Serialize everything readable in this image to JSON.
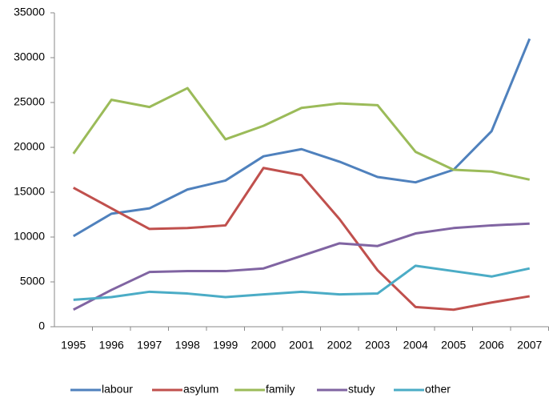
{
  "chart_data": {
    "type": "line",
    "categories": [
      "1995",
      "1996",
      "1997",
      "1998",
      "1999",
      "2000",
      "2001",
      "2002",
      "2003",
      "2004",
      "2005",
      "2006",
      "2007"
    ],
    "series": [
      {
        "name": "labour",
        "color": "#4f81bd",
        "values": [
          10100,
          12600,
          13200,
          15300,
          16300,
          19000,
          19800,
          18400,
          16700,
          16100,
          17500,
          21800,
          32100
        ]
      },
      {
        "name": "asylum",
        "color": "#c0504d",
        "values": [
          15500,
          13200,
          10900,
          11000,
          11300,
          17700,
          16900,
          12000,
          6300,
          2200,
          1900,
          2700,
          3400
        ]
      },
      {
        "name": "family",
        "color": "#9bbb59",
        "values": [
          19300,
          25300,
          24500,
          26600,
          20900,
          22400,
          24400,
          24900,
          24700,
          19500,
          17500,
          17300,
          16400
        ]
      },
      {
        "name": "study",
        "color": "#8064a2",
        "values": [
          1900,
          4100,
          6100,
          6200,
          6200,
          6500,
          7900,
          9300,
          9000,
          10400,
          11000,
          11300,
          11500
        ]
      },
      {
        "name": "other",
        "color": "#4bacc6",
        "values": [
          3000,
          3300,
          3900,
          3700,
          3300,
          3600,
          3900,
          3600,
          3700,
          6800,
          6200,
          5600,
          6500
        ]
      }
    ],
    "ylim": [
      0,
      35000
    ],
    "yticks": [
      0,
      5000,
      10000,
      15000,
      20000,
      25000,
      30000,
      35000
    ],
    "grid": false,
    "legend": "bottom"
  }
}
